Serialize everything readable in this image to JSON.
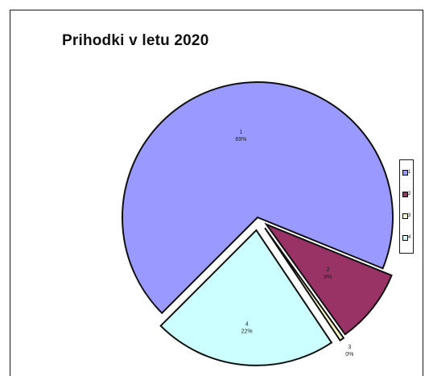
{
  "chart_data": {
    "type": "pie",
    "title": "Prihodki v letu 2020",
    "slices": [
      {
        "category": "1",
        "percent_label": "69%",
        "value": 69,
        "color": "#9999ff"
      },
      {
        "category": "2",
        "percent_label": "9%",
        "value": 9,
        "color": "#993366"
      },
      {
        "category": "3",
        "percent_label": "0%",
        "value": 0.5,
        "color": "#ffffcc"
      },
      {
        "category": "4",
        "percent_label": "22%",
        "value": 22,
        "color": "#ccffff"
      }
    ],
    "legend": {
      "placement": "right",
      "entries": [
        "1",
        "2",
        "3",
        "4"
      ]
    }
  }
}
